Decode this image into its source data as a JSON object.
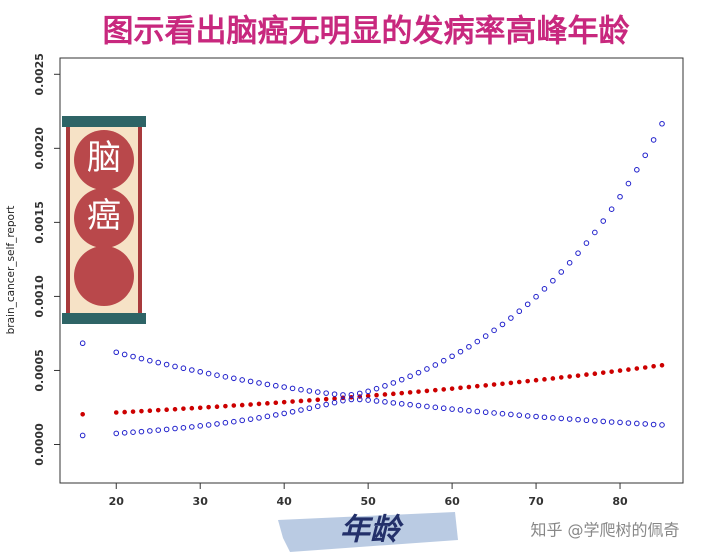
{
  "chart_data": {
    "type": "scatter",
    "title": "图示看出脑癌无明显的发病率高峰年龄",
    "y_label": "brain_cancer_self_report",
    "x_label": "年龄",
    "banner": [
      "脑",
      "癌"
    ],
    "watermark": "知乎 @学爬树的佩奇",
    "xlim": [
      13.3,
      87.5
    ],
    "ylim": [
      -0.00026,
      0.00261
    ],
    "xticks": [
      20,
      30,
      40,
      50,
      60,
      70,
      80
    ],
    "yticks": [
      {
        "value": 0,
        "label": "0.0000"
      },
      {
        "value": 0.0005,
        "label": "0.0005"
      },
      {
        "value": 0.001,
        "label": "0.0010"
      },
      {
        "value": 0.0015,
        "label": "0.0015"
      },
      {
        "value": 0.002,
        "label": "0.0020"
      },
      {
        "value": 0.0025,
        "label": "0.0025"
      }
    ],
    "x": [
      16,
      20,
      21,
      22,
      23,
      24,
      25,
      26,
      27,
      28,
      29,
      30,
      31,
      32,
      33,
      34,
      35,
      36,
      37,
      38,
      39,
      40,
      41,
      42,
      43,
      44,
      45,
      46,
      47,
      48,
      49,
      50,
      51,
      52,
      53,
      54,
      55,
      56,
      57,
      58,
      59,
      60,
      61,
      62,
      63,
      64,
      65,
      66,
      67,
      68,
      69,
      70,
      71,
      72,
      73,
      74,
      75,
      76,
      77,
      78,
      79,
      80,
      81,
      82,
      83,
      84,
      85
    ],
    "series": [
      {
        "color": "#cc0000",
        "filled": true,
        "values": [
          0.000204,
          0.000216,
          0.000219,
          0.000222,
          0.000225,
          0.000228,
          0.000232,
          0.000235,
          0.000238,
          0.000242,
          0.000245,
          0.000248,
          0.000252,
          0.000255,
          0.000259,
          0.000263,
          0.000266,
          0.00027,
          0.000274,
          0.000278,
          0.000282,
          0.000286,
          0.00029,
          0.000294,
          0.000298,
          0.000302,
          0.000306,
          0.00031,
          0.000315,
          0.000319,
          0.000324,
          0.000328,
          0.000333,
          0.000338,
          0.000342,
          0.000347,
          0.000352,
          0.000357,
          0.000362,
          0.000367,
          0.000372,
          0.000377,
          0.000383,
          0.000388,
          0.000394,
          0.000399,
          0.000405,
          0.00041,
          0.000416,
          0.000422,
          0.000428,
          0.000434,
          0.00044,
          0.000446,
          0.000453,
          0.000459,
          0.000465,
          0.000472,
          0.000478,
          0.000485,
          0.000492,
          0.000499,
          0.000506,
          0.000513,
          0.00052,
          0.000528,
          0.000535
        ]
      },
      {
        "color": "#2222cc",
        "filled": false,
        "values": [
          0.000684,
          0.000623,
          0.000608,
          0.000594,
          0.00058,
          0.000566,
          0.000553,
          0.00054,
          0.000527,
          0.000515,
          0.000503,
          0.000491,
          0.000479,
          0.000468,
          0.000457,
          0.000447,
          0.000436,
          0.000426,
          0.000416,
          0.000406,
          0.000397,
          0.000388,
          0.000379,
          0.00037,
          0.000362,
          0.000354,
          0.000347,
          0.00034,
          0.000335,
          0.000336,
          0.000345,
          0.000359,
          0.000377,
          0.000396,
          0.000416,
          0.000438,
          0.000461,
          0.000485,
          0.00051,
          0.000537,
          0.000566,
          0.000596,
          0.000627,
          0.00066,
          0.000695,
          0.000732,
          0.000771,
          0.000811,
          0.000854,
          0.0009,
          0.000947,
          0.000998,
          0.001051,
          0.001106,
          0.001165,
          0.001227,
          0.001292,
          0.00136,
          0.001432,
          0.001509,
          0.001589,
          0.001673,
          0.001762,
          0.001855,
          0.001953,
          0.002057,
          0.002166
        ]
      },
      {
        "color": "#2222cc",
        "filled": false,
        "values": [
          6.1e-05,
          7.5e-05,
          7.9e-05,
          8.3e-05,
          8.7e-05,
          9.2e-05,
          9.7e-05,
          0.000102,
          0.000108,
          0.000113,
          0.000119,
          0.000126,
          0.000132,
          0.000139,
          0.000147,
          0.000154,
          0.000163,
          0.000171,
          0.00018,
          0.00019,
          0.0002,
          0.00021,
          0.000221,
          0.000233,
          0.000245,
          0.000258,
          0.00027,
          0.000283,
          0.000296,
          0.000304,
          0.000304,
          0.0003,
          0.000294,
          0.000288,
          0.000281,
          0.000275,
          0.000269,
          0.000263,
          0.000257,
          0.000251,
          0.000245,
          0.000239,
          0.000234,
          0.000228,
          0.000223,
          0.000218,
          0.000213,
          0.000208,
          0.000203,
          0.000198,
          0.000193,
          0.000189,
          0.000184,
          0.00018,
          0.000176,
          0.000172,
          0.000168,
          0.000164,
          0.00016,
          0.000156,
          0.000152,
          0.000149,
          0.000145,
          0.000142,
          0.000139,
          0.000135,
          0.000132
        ]
      }
    ]
  }
}
